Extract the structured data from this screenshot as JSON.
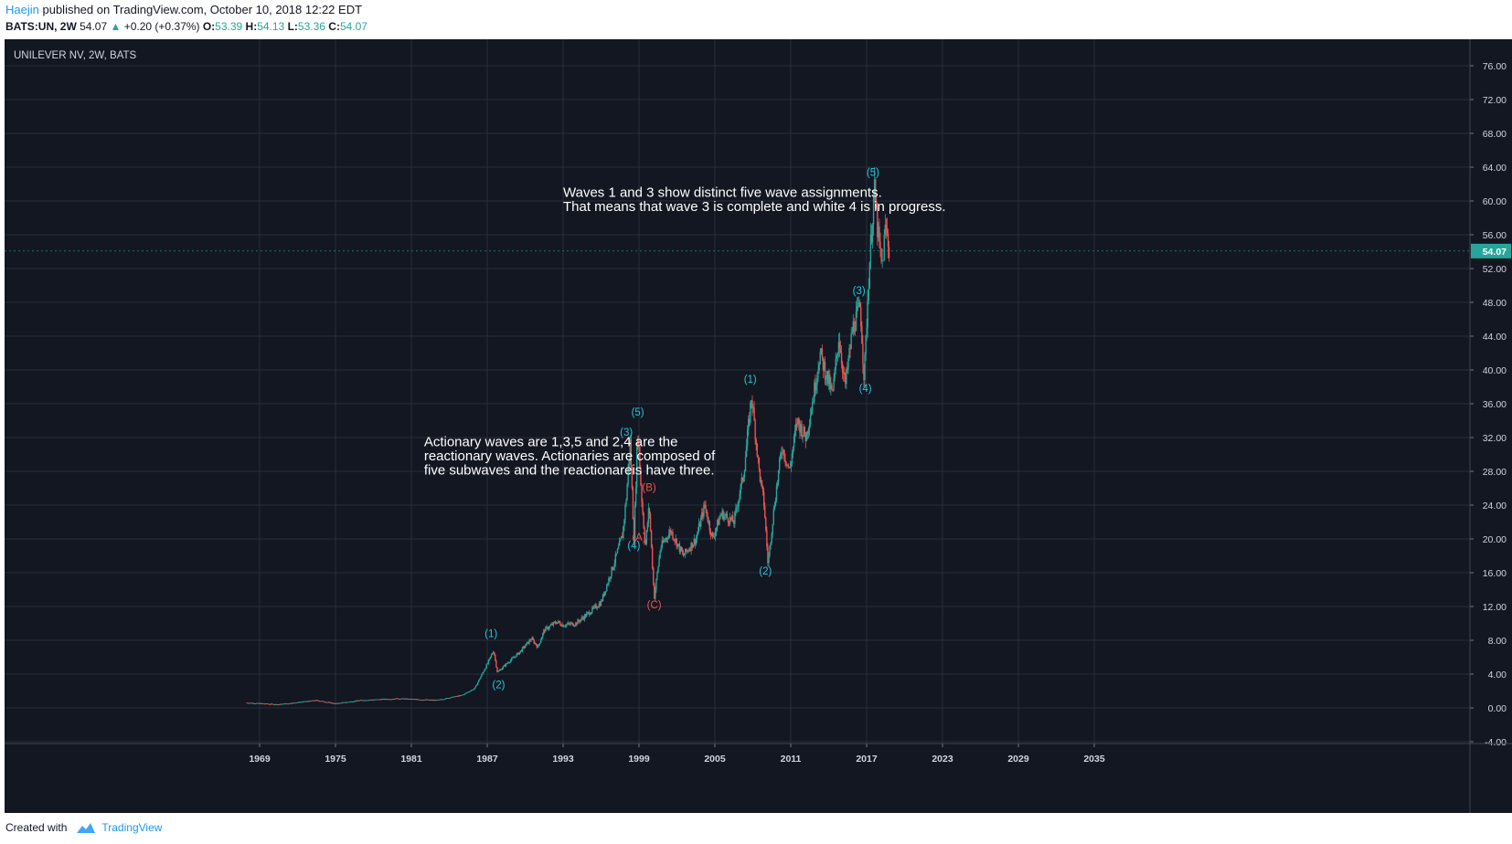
{
  "header": {
    "author": "Haejin",
    "published_text": "published on TradingView.com, October 10, 2018 12:22 EDT",
    "symbol": "BATS:UN, 2W",
    "last": "54.07",
    "change": "+0.20 (+0.37%)",
    "open_label": "O:",
    "open": "53.39",
    "high_label": "H:",
    "high": "54.13",
    "low_label": "L:",
    "low": "53.36",
    "close_label": "C:",
    "close": "54.07"
  },
  "footer": {
    "created_with": "Created with",
    "brand": "TradingView"
  },
  "colors": {
    "background": "#131722",
    "grid": "#2a2e39",
    "axis_text": "#d1d4dc",
    "wave_label": "#26c6da",
    "corrective_label": "#ef5350",
    "up_candle": "#26a69a",
    "down_candle": "#ef5350",
    "price_badge": "#26a69a"
  },
  "chart_data": {
    "type": "candlestick",
    "title": "UNILEVER NV, 2W, BATS",
    "x_ticks": [
      "1969",
      "1975",
      "1981",
      "1987",
      "1993",
      "1999",
      "2005",
      "2011",
      "2017",
      "2023",
      "2029",
      "2035"
    ],
    "xlim": [
      1964.8,
      2058.8
    ],
    "y_ticks": [
      "-4.00",
      "0.00",
      "4.00",
      "8.00",
      "12.00",
      "16.00",
      "20.00",
      "24.00",
      "28.00",
      "32.00",
      "36.00",
      "40.00",
      "44.00",
      "48.00",
      "52.00",
      "56.00",
      "60.00",
      "64.00",
      "68.00",
      "72.00",
      "76.00",
      "80.00"
    ],
    "ylim": [
      -4,
      80
    ],
    "last_price": "54.07",
    "price_path": [
      [
        1968.0,
        0.6
      ],
      [
        1970.5,
        0.4
      ],
      [
        1973.5,
        0.9
      ],
      [
        1975.0,
        0.5
      ],
      [
        1977.0,
        0.9
      ],
      [
        1980.0,
        1.1
      ],
      [
        1983.0,
        0.9
      ],
      [
        1985.0,
        1.5
      ],
      [
        1986.0,
        2.3
      ],
      [
        1987.0,
        5.2
      ],
      [
        1987.5,
        6.8
      ],
      [
        1987.8,
        4.2
      ],
      [
        1988.5,
        5.2
      ],
      [
        1989.5,
        6.5
      ],
      [
        1990.5,
        8.2
      ],
      [
        1991.0,
        7.2
      ],
      [
        1991.5,
        9.2
      ],
      [
        1992.5,
        10.2
      ],
      [
        1993.0,
        9.8
      ],
      [
        1994.0,
        10.0
      ],
      [
        1995.0,
        11.2
      ],
      [
        1996.0,
        12.5
      ],
      [
        1997.0,
        17.0
      ],
      [
        1997.7,
        20.5
      ],
      [
        1998.0,
        25.0
      ],
      [
        1998.3,
        31.5
      ],
      [
        1998.6,
        20.0
      ],
      [
        1998.9,
        33.0
      ],
      [
        1999.2,
        25.0
      ],
      [
        1999.5,
        19.0
      ],
      [
        1999.8,
        24.0
      ],
      [
        2000.2,
        13.0
      ],
      [
        2000.7,
        19.0
      ],
      [
        2001.5,
        21.0
      ],
      [
        2002.5,
        18.0
      ],
      [
        2003.5,
        20.0
      ],
      [
        2004.2,
        24.0
      ],
      [
        2004.8,
        20.0
      ],
      [
        2005.5,
        23.0
      ],
      [
        2006.5,
        22.0
      ],
      [
        2007.3,
        28.0
      ],
      [
        2007.9,
        37.0
      ],
      [
        2008.5,
        28.0
      ],
      [
        2008.9,
        24.0
      ],
      [
        2009.2,
        17.0
      ],
      [
        2009.7,
        24.0
      ],
      [
        2010.3,
        31.0
      ],
      [
        2010.9,
        28.0
      ],
      [
        2011.5,
        34.0
      ],
      [
        2012.2,
        32.0
      ],
      [
        2012.8,
        37.0
      ],
      [
        2013.3,
        42.0
      ],
      [
        2013.9,
        39.0
      ],
      [
        2014.3,
        37.0
      ],
      [
        2014.8,
        44.0
      ],
      [
        2015.3,
        38.0
      ],
      [
        2015.9,
        45.0
      ],
      [
        2016.5,
        47.5
      ],
      [
        2016.8,
        39.0
      ],
      [
        2017.2,
        52.0
      ],
      [
        2017.6,
        61.5
      ],
      [
        2017.9,
        56.0
      ],
      [
        2018.2,
        52.0
      ],
      [
        2018.5,
        57.0
      ],
      [
        2018.8,
        54.07
      ]
    ],
    "wave_labels": [
      {
        "text": "(1)",
        "x": 1987.3,
        "y": 8.4,
        "color": "cyan"
      },
      {
        "text": "(2)",
        "x": 1987.9,
        "y": 2.3,
        "color": "cyan"
      },
      {
        "text": "(3)",
        "x": 1998.0,
        "y": 32.2,
        "color": "cyan"
      },
      {
        "text": "(4)",
        "x": 1998.6,
        "y": 18.8,
        "color": "cyan"
      },
      {
        "text": "(5)",
        "x": 1998.9,
        "y": 34.6,
        "color": "cyan"
      },
      {
        "text": "(A)",
        "x": 1999.0,
        "y": 19.8,
        "color": "red"
      },
      {
        "text": "(B)",
        "x": 1999.8,
        "y": 25.7,
        "color": "red"
      },
      {
        "text": "(C)",
        "x": 2000.2,
        "y": 11.8,
        "color": "red"
      },
      {
        "text": "(1)",
        "x": 2007.8,
        "y": 38.5,
        "color": "cyan"
      },
      {
        "text": "(2)",
        "x": 2009.0,
        "y": 15.8,
        "color": "cyan"
      },
      {
        "text": "(3)",
        "x": 2016.4,
        "y": 49.0,
        "color": "cyan"
      },
      {
        "text": "(4)",
        "x": 2016.9,
        "y": 37.4,
        "color": "cyan"
      },
      {
        "text": "(5)",
        "x": 2017.5,
        "y": 63.0,
        "color": "cyan"
      }
    ],
    "annotations": [
      {
        "lines": [
          "Waves 1 and 3 show distinct five wave assignments.",
          "That means that wave 3 is complete and white 4 is in progress."
        ],
        "x": 1993.0,
        "y": 60.5
      },
      {
        "lines": [
          "Actionary waves are 1,3,5 and 2,4 are the",
          "reactionary waves. Actionaries are composed of",
          "five subwaves and the reactionareis have three."
        ],
        "x": 1982.0,
        "y": 31.0
      }
    ]
  }
}
